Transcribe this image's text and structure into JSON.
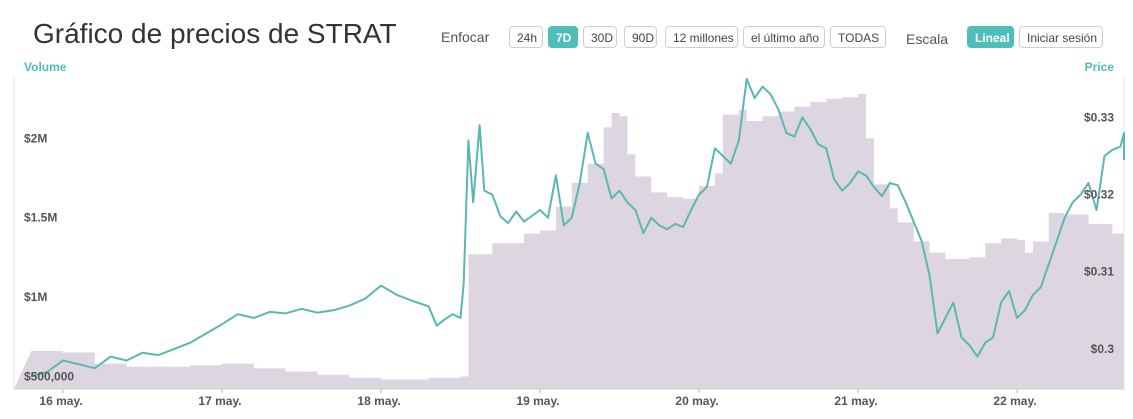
{
  "header": {
    "title": "Gráfico de precios de STRAT",
    "zoom_label": "Enfocar",
    "scale_label": "Escala"
  },
  "zoom_buttons": [
    {
      "label": "24h",
      "active": false
    },
    {
      "label": "7D",
      "active": true
    },
    {
      "label": "30D",
      "active": false
    },
    {
      "label": "90D",
      "active": false
    },
    {
      "label": "12 millones",
      "active": false
    },
    {
      "label": "el último año",
      "active": false
    },
    {
      "label": "TODAS",
      "active": false
    }
  ],
  "scale_buttons": [
    {
      "label": "Lineal",
      "active": true
    },
    {
      "label": "Iniciar sesión",
      "active": false
    }
  ],
  "colors": {
    "accent": "#4fbdba",
    "volume_fill": "#ddd6e0",
    "price_line": "#5ab7b2"
  },
  "chart_data": {
    "type": "line",
    "left_axis_title": "Volume",
    "right_axis_title": "Price",
    "x_ticks": [
      "16 may.",
      "17 may.",
      "18 may.",
      "19 may.",
      "20 may.",
      "21 may.",
      "22 may."
    ],
    "x_range_days": [
      -0.2,
      6.75
    ],
    "volume_ticks": [
      {
        "label": "$500,000",
        "value": 500000
      },
      {
        "label": "$1M",
        "value": 1000000
      },
      {
        "label": "$1.5M",
        "value": 1500000
      },
      {
        "label": "$2M",
        "value": 2000000
      }
    ],
    "volume_range": [
      420000,
      2400000
    ],
    "price_ticks": [
      {
        "label": "$0.3",
        "value": 0.3
      },
      {
        "label": "$0.31",
        "value": 0.31
      },
      {
        "label": "$0.32",
        "value": 0.32
      },
      {
        "label": "$0.33",
        "value": 0.33
      }
    ],
    "price_range": [
      0.2948,
      0.3355
    ],
    "series": [
      {
        "name": "Volume",
        "kind": "area",
        "points": [
          [
            -0.2,
            660000
          ],
          [
            0.0,
            650000
          ],
          [
            0.2,
            580000
          ],
          [
            0.4,
            560000
          ],
          [
            0.6,
            560000
          ],
          [
            0.8,
            570000
          ],
          [
            1.0,
            580000
          ],
          [
            1.2,
            550000
          ],
          [
            1.4,
            530000
          ],
          [
            1.6,
            510000
          ],
          [
            1.8,
            490000
          ],
          [
            2.0,
            480000
          ],
          [
            2.3,
            490000
          ],
          [
            2.5,
            500000
          ],
          [
            2.55,
            1270000
          ],
          [
            2.7,
            1340000
          ],
          [
            2.9,
            1400000
          ],
          [
            3.0,
            1420000
          ],
          [
            3.1,
            1570000
          ],
          [
            3.2,
            1720000
          ],
          [
            3.3,
            1840000
          ],
          [
            3.4,
            2070000
          ],
          [
            3.45,
            2160000
          ],
          [
            3.5,
            2140000
          ],
          [
            3.55,
            1900000
          ],
          [
            3.6,
            1760000
          ],
          [
            3.7,
            1660000
          ],
          [
            3.8,
            1630000
          ],
          [
            3.9,
            1620000
          ],
          [
            4.0,
            1700000
          ],
          [
            4.1,
            1780000
          ],
          [
            4.15,
            2150000
          ],
          [
            4.25,
            2180000
          ],
          [
            4.3,
            2110000
          ],
          [
            4.4,
            2140000
          ],
          [
            4.5,
            2170000
          ],
          [
            4.6,
            2200000
          ],
          [
            4.7,
            2230000
          ],
          [
            4.8,
            2250000
          ],
          [
            4.9,
            2260000
          ],
          [
            5.0,
            2280000
          ],
          [
            5.05,
            2000000
          ],
          [
            5.1,
            1710000
          ],
          [
            5.2,
            1560000
          ],
          [
            5.25,
            1470000
          ],
          [
            5.35,
            1350000
          ],
          [
            5.45,
            1280000
          ],
          [
            5.55,
            1240000
          ],
          [
            5.7,
            1250000
          ],
          [
            5.8,
            1340000
          ],
          [
            5.9,
            1370000
          ],
          [
            6.0,
            1360000
          ],
          [
            6.05,
            1280000
          ],
          [
            6.1,
            1350000
          ],
          [
            6.2,
            1530000
          ],
          [
            6.3,
            1520000
          ],
          [
            6.45,
            1460000
          ],
          [
            6.6,
            1400000
          ],
          [
            6.75,
            1380000
          ]
        ]
      },
      {
        "name": "Price",
        "kind": "line",
        "points": [
          [
            -0.2,
            0.2965
          ],
          [
            -0.1,
            0.297
          ],
          [
            0.0,
            0.2985
          ],
          [
            0.1,
            0.298
          ],
          [
            0.2,
            0.2975
          ],
          [
            0.3,
            0.299
          ],
          [
            0.4,
            0.2985
          ],
          [
            0.5,
            0.2995
          ],
          [
            0.6,
            0.2992
          ],
          [
            0.7,
            0.3
          ],
          [
            0.8,
            0.3008
          ],
          [
            0.9,
            0.302
          ],
          [
            1.0,
            0.3032
          ],
          [
            1.1,
            0.3045
          ],
          [
            1.2,
            0.304
          ],
          [
            1.3,
            0.3048
          ],
          [
            1.4,
            0.3046
          ],
          [
            1.5,
            0.3052
          ],
          [
            1.6,
            0.3047
          ],
          [
            1.7,
            0.305
          ],
          [
            1.8,
            0.3056
          ],
          [
            1.9,
            0.3065
          ],
          [
            2.0,
            0.3082
          ],
          [
            2.1,
            0.307
          ],
          [
            2.2,
            0.3062
          ],
          [
            2.3,
            0.3055
          ],
          [
            2.35,
            0.303
          ],
          [
            2.4,
            0.3038
          ],
          [
            2.45,
            0.3045
          ],
          [
            2.5,
            0.304
          ],
          [
            2.52,
            0.3085
          ],
          [
            2.55,
            0.327
          ],
          [
            2.58,
            0.319
          ],
          [
            2.62,
            0.329
          ],
          [
            2.65,
            0.3205
          ],
          [
            2.7,
            0.32
          ],
          [
            2.75,
            0.3172
          ],
          [
            2.8,
            0.3163
          ],
          [
            2.85,
            0.3178
          ],
          [
            2.9,
            0.3165
          ],
          [
            3.0,
            0.318
          ],
          [
            3.05,
            0.317
          ],
          [
            3.1,
            0.3225
          ],
          [
            3.15,
            0.316
          ],
          [
            3.2,
            0.317
          ],
          [
            3.25,
            0.3215
          ],
          [
            3.3,
            0.328
          ],
          [
            3.35,
            0.324
          ],
          [
            3.4,
            0.3233
          ],
          [
            3.45,
            0.3195
          ],
          [
            3.5,
            0.3205
          ],
          [
            3.55,
            0.319
          ],
          [
            3.6,
            0.318
          ],
          [
            3.65,
            0.315
          ],
          [
            3.7,
            0.317
          ],
          [
            3.75,
            0.316
          ],
          [
            3.8,
            0.3155
          ],
          [
            3.85,
            0.3162
          ],
          [
            3.9,
            0.3158
          ],
          [
            3.95,
            0.318
          ],
          [
            4.0,
            0.32
          ],
          [
            4.05,
            0.321
          ],
          [
            4.1,
            0.326
          ],
          [
            4.15,
            0.325
          ],
          [
            4.2,
            0.324
          ],
          [
            4.25,
            0.327
          ],
          [
            4.3,
            0.335
          ],
          [
            4.35,
            0.3325
          ],
          [
            4.4,
            0.334
          ],
          [
            4.45,
            0.333
          ],
          [
            4.5,
            0.331
          ],
          [
            4.55,
            0.328
          ],
          [
            4.6,
            0.3275
          ],
          [
            4.65,
            0.33
          ],
          [
            4.7,
            0.3285
          ],
          [
            4.75,
            0.3265
          ],
          [
            4.8,
            0.326
          ],
          [
            4.85,
            0.322
          ],
          [
            4.9,
            0.3205
          ],
          [
            4.95,
            0.3215
          ],
          [
            5.0,
            0.323
          ],
          [
            5.05,
            0.3225
          ],
          [
            5.1,
            0.321
          ],
          [
            5.15,
            0.3198
          ],
          [
            5.2,
            0.3215
          ],
          [
            5.25,
            0.3212
          ],
          [
            5.3,
            0.319
          ],
          [
            5.35,
            0.3165
          ],
          [
            5.4,
            0.314
          ],
          [
            5.45,
            0.3095
          ],
          [
            5.5,
            0.302
          ],
          [
            5.55,
            0.304
          ],
          [
            5.6,
            0.306
          ],
          [
            5.65,
            0.3015
          ],
          [
            5.7,
            0.3005
          ],
          [
            5.75,
            0.299
          ],
          [
            5.8,
            0.3008
          ],
          [
            5.85,
            0.3015
          ],
          [
            5.9,
            0.306
          ],
          [
            5.95,
            0.3075
          ],
          [
            6.0,
            0.304
          ],
          [
            6.05,
            0.305
          ],
          [
            6.1,
            0.307
          ],
          [
            6.15,
            0.308
          ],
          [
            6.2,
            0.311
          ],
          [
            6.25,
            0.314
          ],
          [
            6.3,
            0.317
          ],
          [
            6.35,
            0.319
          ],
          [
            6.4,
            0.32
          ],
          [
            6.45,
            0.3215
          ],
          [
            6.5,
            0.318
          ],
          [
            6.55,
            0.325
          ],
          [
            6.6,
            0.3258
          ],
          [
            6.65,
            0.3262
          ],
          [
            6.7,
            0.328
          ],
          [
            6.75,
            0.3245
          ]
        ]
      }
    ]
  }
}
